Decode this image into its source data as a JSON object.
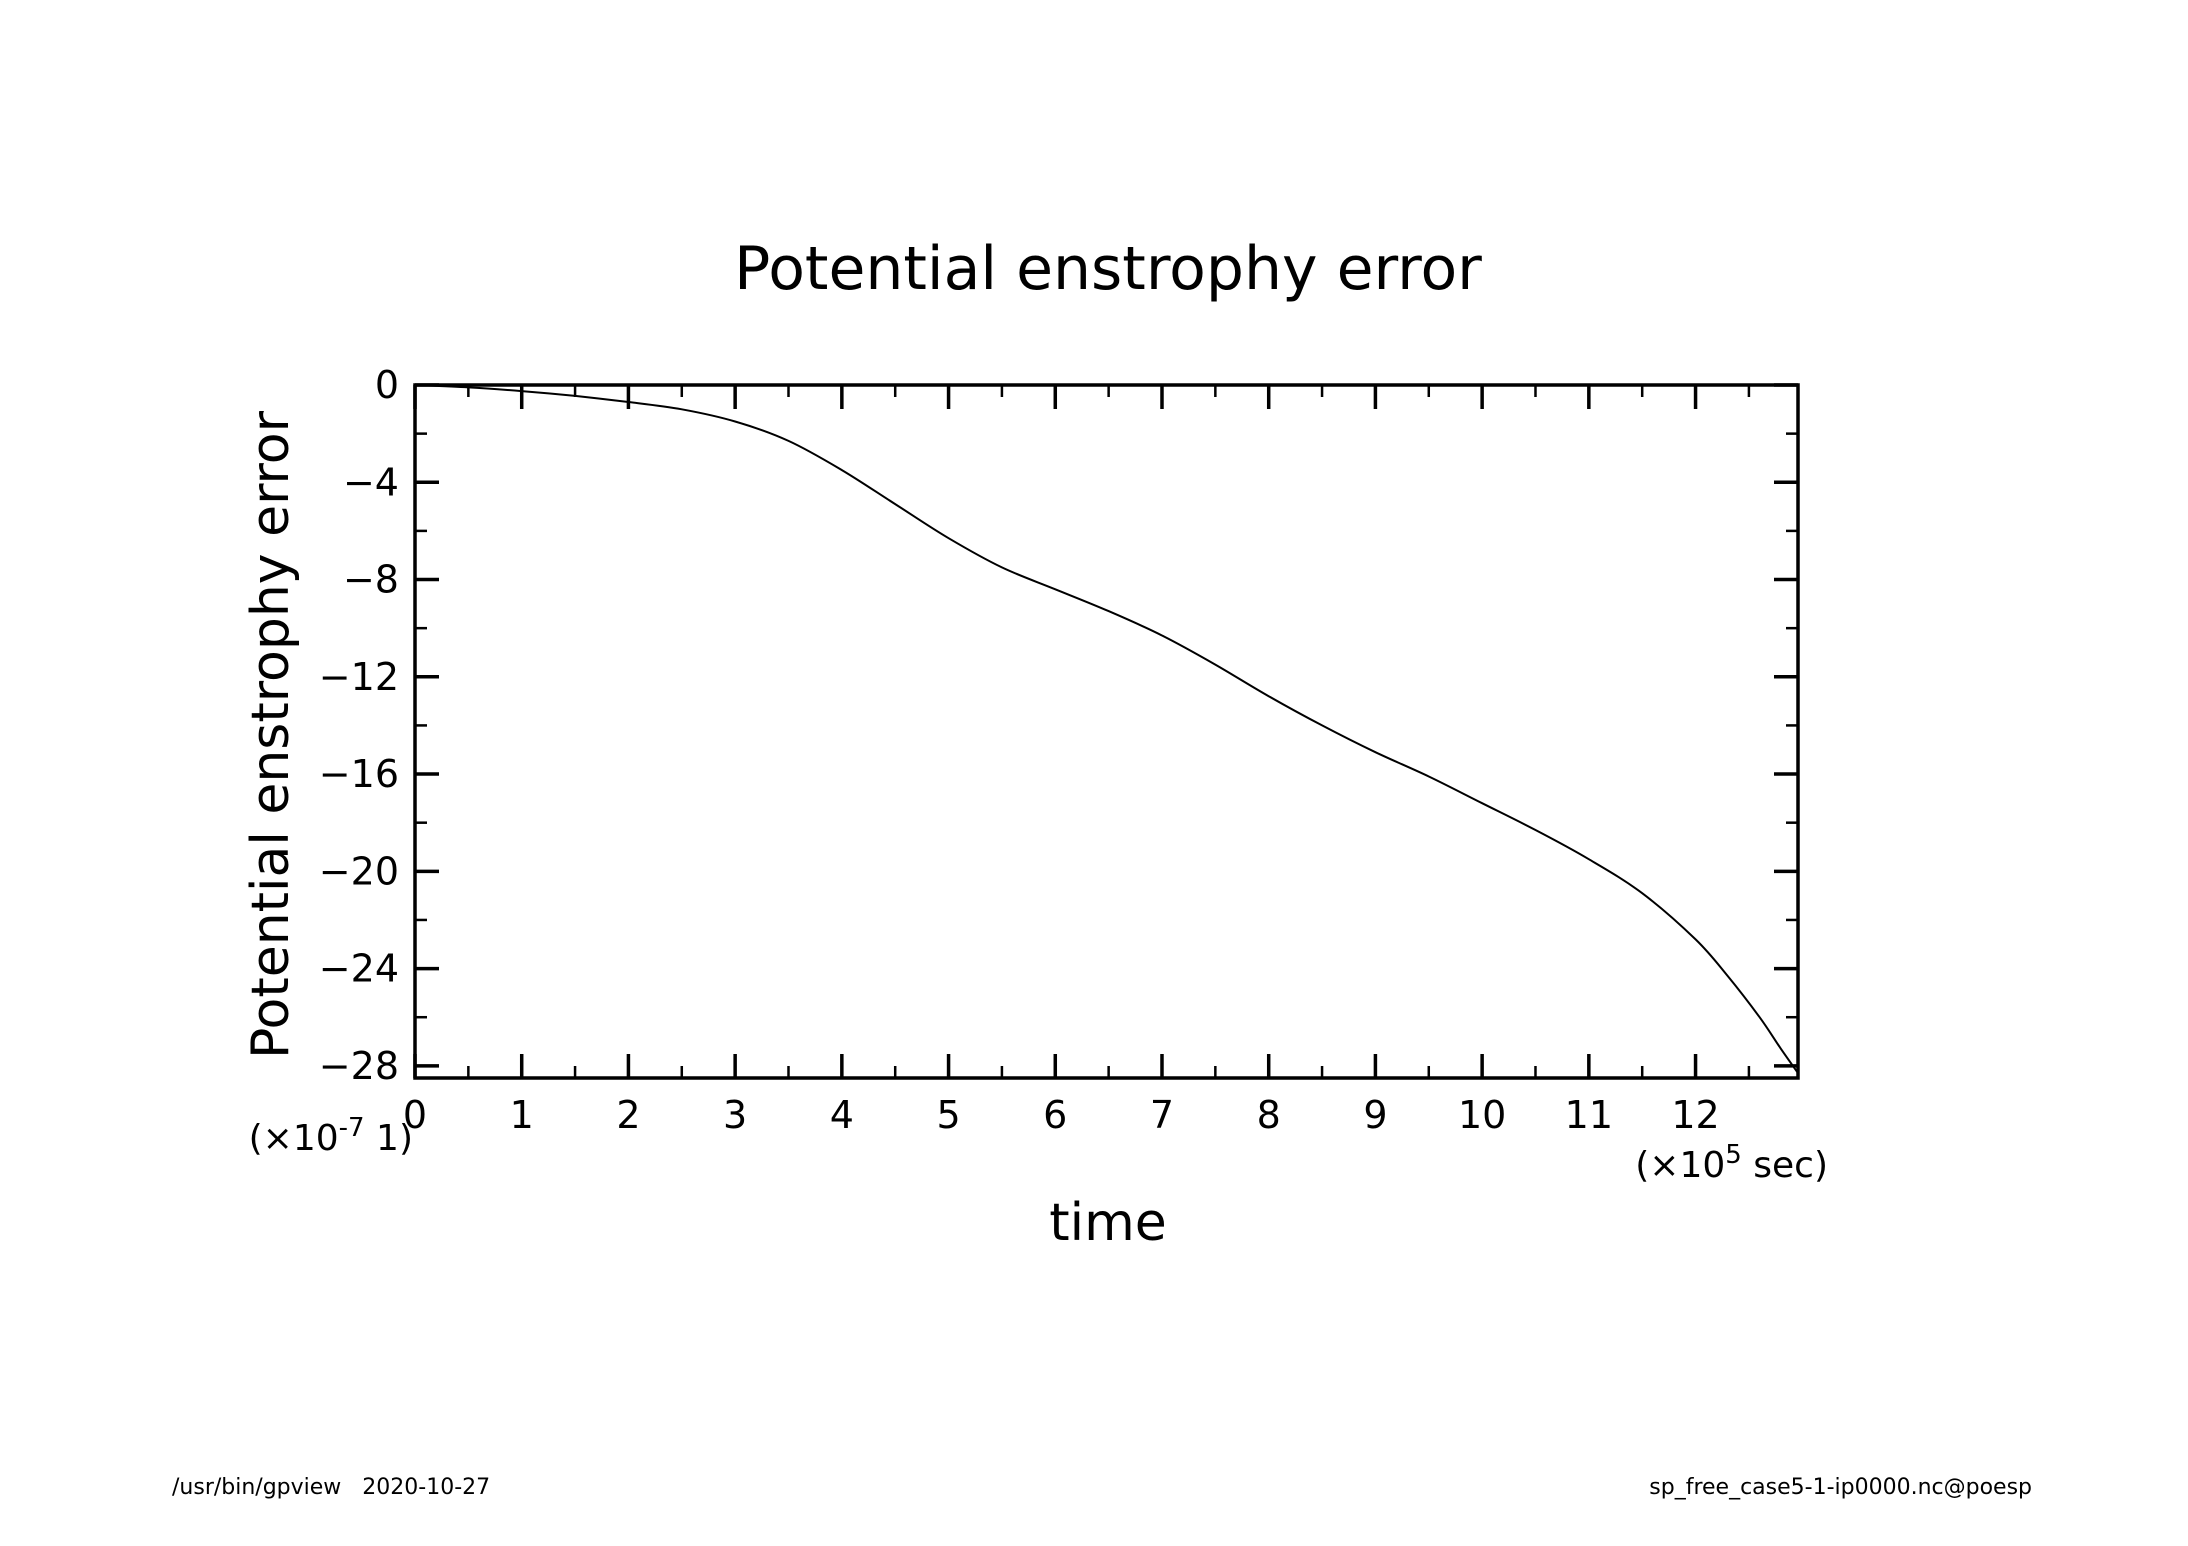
{
  "footer": {
    "left": "/usr/bin/gpview   2020-10-27",
    "right": "sp_free_case5-1-ip0000.nc@poesp"
  },
  "chart_data": {
    "type": "line",
    "title": "Potential enstrophy error",
    "xlabel": "time",
    "ylabel": "Potential enstrophy error",
    "x_scale_label": {
      "prefix": "(×10",
      "exp": "5",
      "suffix": " sec)"
    },
    "y_scale_label": {
      "prefix": "(×10",
      "exp": "-7",
      "suffix": " 1)"
    },
    "xlim": [
      0,
      12.96
    ],
    "ylim": [
      -28.5,
      0
    ],
    "x_ticks": [
      0,
      1,
      2,
      3,
      4,
      5,
      6,
      7,
      8,
      9,
      10,
      11,
      12
    ],
    "y_ticks": [
      0,
      -4,
      -8,
      -12,
      -16,
      -20,
      -24,
      -28
    ],
    "grid": false,
    "line_color": "#000000",
    "series": [
      {
        "x": [
          0,
          0.5,
          1,
          1.5,
          2,
          2.5,
          3,
          3.5,
          4,
          4.5,
          5,
          5.5,
          6,
          6.5,
          7,
          7.5,
          8,
          8.5,
          9,
          9.5,
          10,
          10.5,
          11,
          11.5,
          12,
          12.3,
          12.6,
          12.8,
          12.96
        ],
        "y": [
          0,
          -0.1,
          -0.25,
          -0.45,
          -0.7,
          -1.0,
          -1.5,
          -2.3,
          -3.5,
          -4.9,
          -6.3,
          -7.5,
          -8.4,
          -9.3,
          -10.3,
          -11.5,
          -12.8,
          -14.0,
          -15.1,
          -16.1,
          -17.2,
          -18.3,
          -19.5,
          -20.9,
          -22.8,
          -24.3,
          -26.0,
          -27.3,
          -28.3
        ]
      }
    ]
  }
}
